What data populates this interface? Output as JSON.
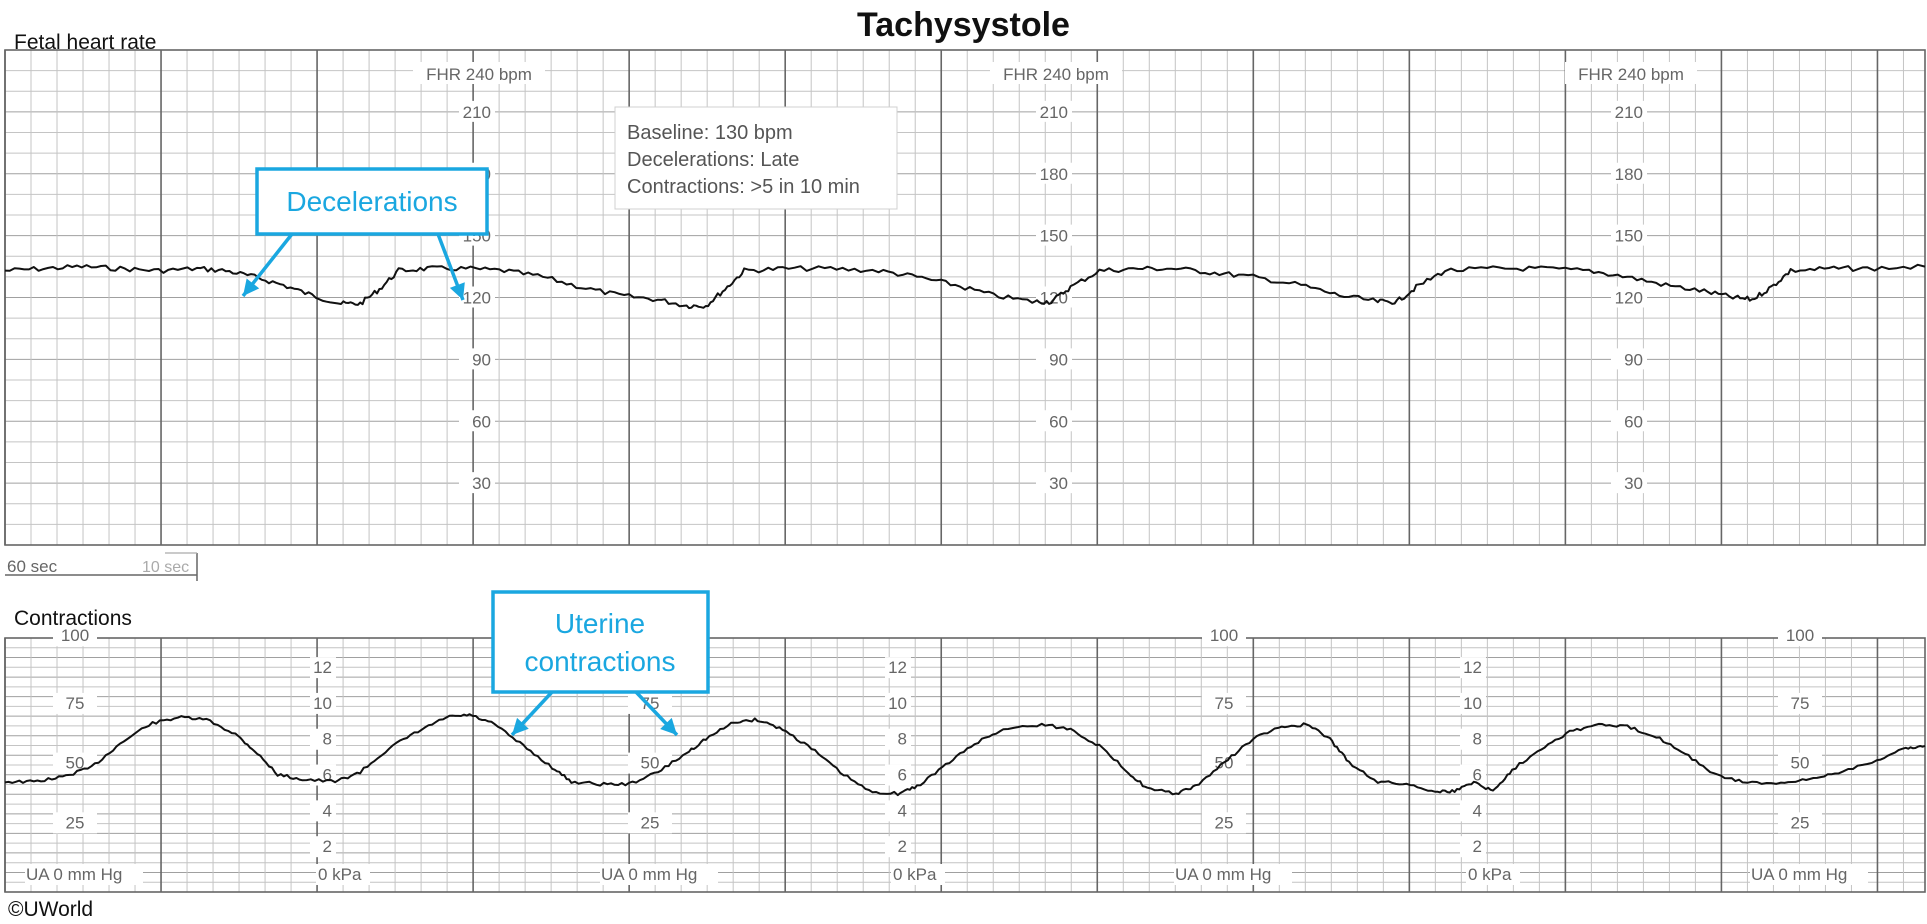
{
  "title": "Tachysystole",
  "copyright": "©UWorld",
  "colors": {
    "grid_minor": "#c4c4c4",
    "grid_major": "#666666",
    "trace": "#111111",
    "callout": "#1aa7e0"
  },
  "fhr_panel": {
    "label": "Fetal heart rate",
    "axis_title": "FHR 240 bpm",
    "ticks": [
      "210",
      "180",
      "150",
      "120",
      "90",
      "60",
      "30"
    ],
    "scale_bar": {
      "major": "60 sec",
      "minor": "10 sec"
    }
  },
  "ua_panel": {
    "label": "Contractions",
    "mmhg_ticks": [
      "100",
      "75",
      "50",
      "25"
    ],
    "mmhg_footer": "UA   0   mm Hg",
    "kpa_ticks": [
      "12",
      "10",
      "8",
      "6",
      "4",
      "2"
    ],
    "kpa_footer": "0  kPa"
  },
  "info_box": [
    "Baseline: 130 bpm",
    "Decelerations: Late",
    "Contractions: >5 in 10 min"
  ],
  "callouts": {
    "decelerations": "Decelerations",
    "uterine_line1": "Uterine",
    "uterine_line2": "contractions"
  },
  "chart_data": [
    {
      "type": "line",
      "title": "Fetal heart rate",
      "ylabel": "FHR 240 bpm",
      "x_unit": "min",
      "xlim": [
        0,
        10
      ],
      "ylim": [
        0,
        240
      ],
      "grid": true,
      "series": [
        {
          "values": [
            [
              0.0,
              133
            ],
            [
              0.2,
              134
            ],
            [
              0.4,
              135
            ],
            [
              0.6,
              134
            ],
            [
              0.8,
              133
            ],
            [
              1.0,
              134
            ],
            [
              1.15,
              133
            ],
            [
              1.3,
              130
            ],
            [
              1.45,
              126
            ],
            [
              1.6,
              121
            ],
            [
              1.75,
              117
            ],
            [
              1.85,
              117
            ],
            [
              1.95,
              124
            ],
            [
              2.05,
              133
            ],
            [
              2.2,
              134
            ],
            [
              2.4,
              134
            ],
            [
              2.6,
              133
            ],
            [
              2.8,
              130
            ],
            [
              3.0,
              125
            ],
            [
              3.2,
              121
            ],
            [
              3.4,
              119
            ],
            [
              3.55,
              116
            ],
            [
              3.65,
              116
            ],
            [
              3.75,
              124
            ],
            [
              3.85,
              133
            ],
            [
              4.05,
              134
            ],
            [
              4.3,
              134
            ],
            [
              4.55,
              133
            ],
            [
              4.75,
              130
            ],
            [
              4.95,
              126
            ],
            [
              5.15,
              121
            ],
            [
              5.35,
              118
            ],
            [
              5.45,
              118
            ],
            [
              5.55,
              125
            ],
            [
              5.7,
              133
            ],
            [
              5.9,
              134
            ],
            [
              6.1,
              134
            ],
            [
              6.3,
              132
            ],
            [
              6.5,
              130
            ],
            [
              6.75,
              126
            ],
            [
              6.95,
              121
            ],
            [
              7.15,
              118
            ],
            [
              7.25,
              118
            ],
            [
              7.35,
              125
            ],
            [
              7.5,
              133
            ],
            [
              7.75,
              134
            ],
            [
              8.0,
              134
            ],
            [
              8.25,
              133
            ],
            [
              8.45,
              130
            ],
            [
              8.65,
              126
            ],
            [
              8.85,
              123
            ],
            [
              9.0,
              120
            ],
            [
              9.1,
              119
            ],
            [
              9.2,
              125
            ],
            [
              9.3,
              133
            ],
            [
              9.5,
              134
            ],
            [
              9.7,
              134
            ],
            [
              10.0,
              135
            ]
          ]
        }
      ]
    },
    {
      "type": "line",
      "title": "Contractions",
      "ylabel": "UA mm Hg",
      "x_unit": "min",
      "xlim": [
        0,
        10
      ],
      "ylim": [
        0,
        100
      ],
      "grid": true,
      "series": [
        {
          "values": [
            [
              0.0,
              42
            ],
            [
              0.15,
              42
            ],
            [
              0.3,
              44
            ],
            [
              0.45,
              48
            ],
            [
              0.6,
              58
            ],
            [
              0.75,
              66
            ],
            [
              0.9,
              69
            ],
            [
              1.05,
              68
            ],
            [
              1.2,
              62
            ],
            [
              1.3,
              55
            ],
            [
              1.42,
              45
            ],
            [
              1.55,
              43
            ],
            [
              1.72,
              42
            ],
            [
              1.85,
              46
            ],
            [
              2.0,
              56
            ],
            [
              2.15,
              63
            ],
            [
              2.3,
              69
            ],
            [
              2.42,
              70
            ],
            [
              2.55,
              66
            ],
            [
              2.7,
              57
            ],
            [
              2.85,
              48
            ],
            [
              2.95,
              42
            ],
            [
              3.1,
              41
            ],
            [
              3.25,
              41
            ],
            [
              3.4,
              46
            ],
            [
              3.55,
              54
            ],
            [
              3.65,
              60
            ],
            [
              3.8,
              67
            ],
            [
              3.92,
              68
            ],
            [
              4.05,
              64
            ],
            [
              4.2,
              56
            ],
            [
              4.35,
              46
            ],
            [
              4.5,
              38
            ],
            [
              4.65,
              37
            ],
            [
              4.75,
              40
            ],
            [
              4.9,
              49
            ],
            [
              5.05,
              58
            ],
            [
              5.2,
              64
            ],
            [
              5.4,
              66
            ],
            [
              5.55,
              64
            ],
            [
              5.7,
              57
            ],
            [
              5.85,
              46
            ],
            [
              5.95,
              39
            ],
            [
              6.1,
              37
            ],
            [
              6.2,
              40
            ],
            [
              6.35,
              50
            ],
            [
              6.5,
              60
            ],
            [
              6.65,
              65
            ],
            [
              6.78,
              66
            ],
            [
              6.9,
              60
            ],
            [
              7.0,
              50
            ],
            [
              7.15,
              42
            ],
            [
              7.3,
              41
            ],
            [
              7.45,
              38
            ],
            [
              7.55,
              38
            ],
            [
              7.65,
              42
            ],
            [
              7.75,
              38
            ],
            [
              7.85,
              47
            ],
            [
              8.0,
              56
            ],
            [
              8.15,
              63
            ],
            [
              8.3,
              66
            ],
            [
              8.45,
              65
            ],
            [
              8.6,
              61
            ],
            [
              8.75,
              54
            ],
            [
              8.9,
              45
            ],
            [
              9.05,
              42
            ],
            [
              9.25,
              41
            ],
            [
              9.4,
              43
            ],
            [
              9.55,
              46
            ],
            [
              9.75,
              51
            ],
            [
              9.9,
              56
            ],
            [
              10.0,
              57
            ]
          ]
        }
      ]
    }
  ]
}
